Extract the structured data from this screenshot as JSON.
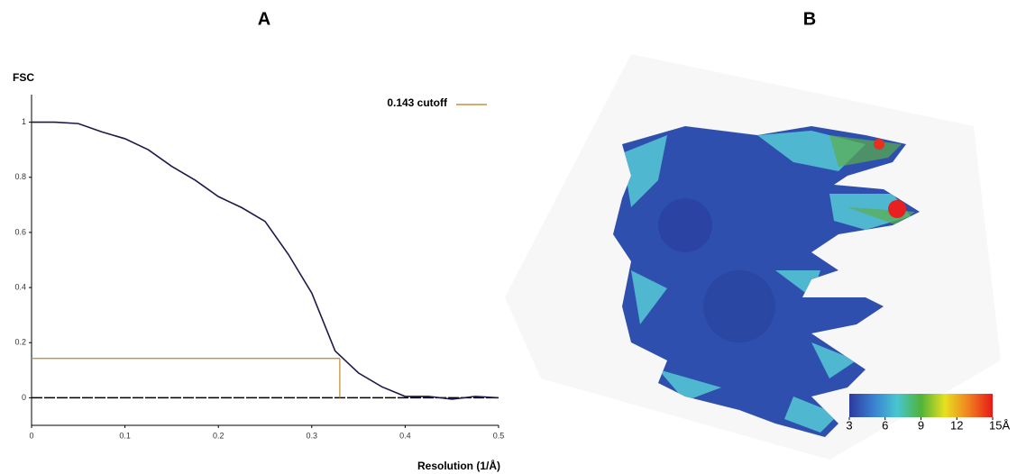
{
  "panel_labels": [
    "A",
    "B"
  ],
  "chart_data": {
    "type": "line",
    "ylabel": "FSC",
    "xlabel": "Resolution (1/Å)",
    "x": [
      0,
      0.025,
      0.05,
      0.075,
      0.1,
      0.125,
      0.15,
      0.175,
      0.2,
      0.225,
      0.25,
      0.275,
      0.3,
      0.325,
      0.35,
      0.375,
      0.4,
      0.425,
      0.45,
      0.475,
      0.5
    ],
    "series": [
      {
        "name": "FSC",
        "color": "#1c1a4a",
        "values": [
          1.0,
          1.0,
          0.995,
          0.965,
          0.94,
          0.9,
          0.84,
          0.79,
          0.73,
          0.69,
          0.64,
          0.52,
          0.38,
          0.17,
          0.09,
          0.04,
          0.005,
          0.005,
          -0.005,
          0.005,
          0.0
        ]
      }
    ],
    "cutoff": {
      "name": "0.143 cutoff",
      "y": 0.143,
      "x": 0.33,
      "color": "#c8903e"
    },
    "xlim": [
      0,
      0.5
    ],
    "ylim": [
      -0.1,
      1.1
    ],
    "xticks": [
      0,
      0.1,
      0.2,
      0.3,
      0.4,
      0.5
    ],
    "yticks": [
      0,
      0.2,
      0.4,
      0.6,
      0.8,
      1
    ]
  },
  "colorbar": {
    "range": [
      3,
      15
    ],
    "ticks": [
      3,
      6,
      9,
      12,
      {
        "value": 15,
        "label": "15Å"
      }
    ],
    "colors": [
      "#2b3a9e",
      "#3a7fd0",
      "#48c6d0",
      "#4fb33a",
      "#e8e020",
      "#f08020",
      "#e81818"
    ]
  }
}
